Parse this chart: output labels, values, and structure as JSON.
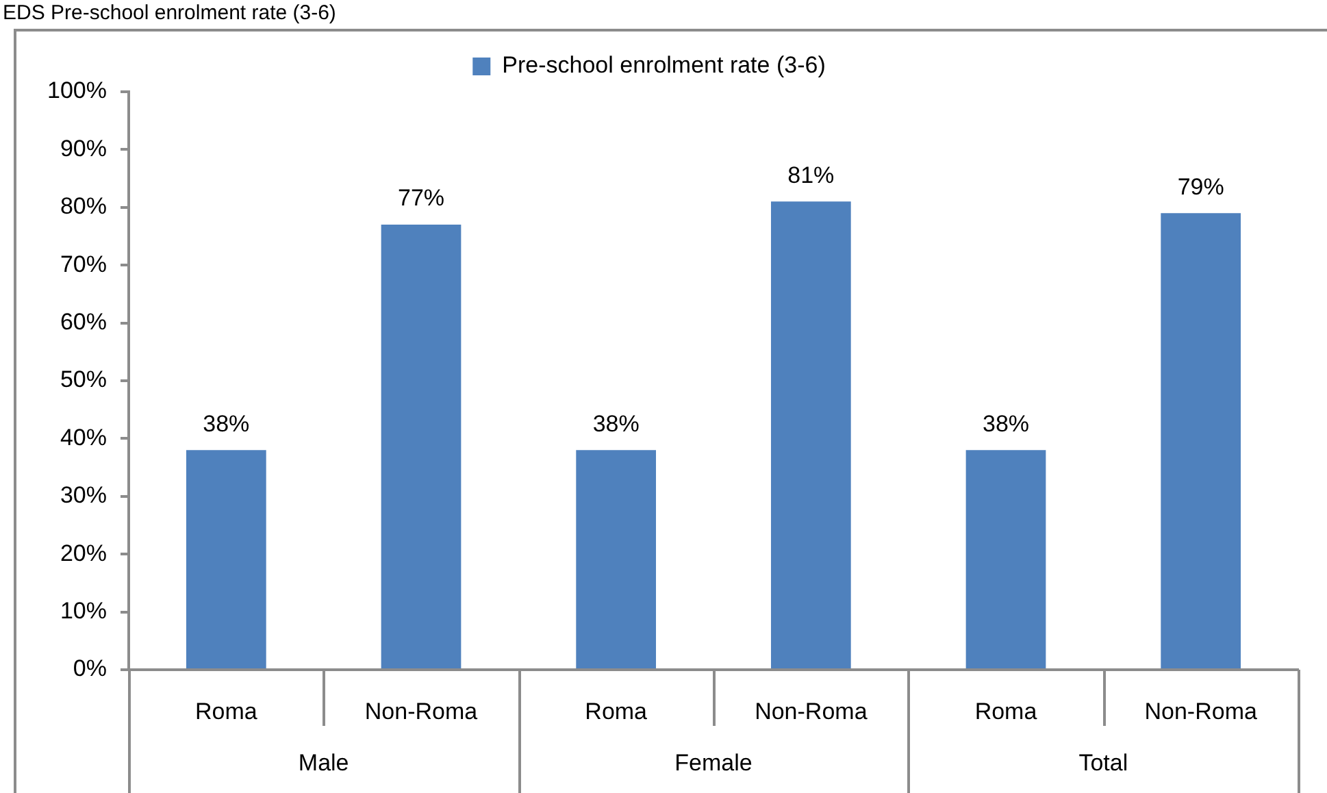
{
  "chart_data": {
    "type": "bar",
    "title": "EDS Pre-school enrolment rate (3-6)",
    "categories": [
      "Roma",
      "Non-Roma",
      "Roma",
      "Non-Roma",
      "Roma",
      "Non-Roma"
    ],
    "series": [
      {
        "name": "Pre-school enrolment rate (3-6)",
        "color": "#4f81bd",
        "values": [
          38,
          77,
          38,
          81,
          38,
          79
        ],
        "value_labels": [
          "38%",
          "77%",
          "38%",
          "81%",
          "38%",
          "79%"
        ]
      }
    ],
    "ylim": [
      0,
      100
    ],
    "yticks": [
      {
        "value": 0,
        "label": "0%"
      },
      {
        "value": 10,
        "label": "10%"
      },
      {
        "value": 20,
        "label": "20%"
      },
      {
        "value": 30,
        "label": "30%"
      },
      {
        "value": 40,
        "label": "40%"
      },
      {
        "value": 50,
        "label": "50%"
      },
      {
        "value": 60,
        "label": "60%"
      },
      {
        "value": 70,
        "label": "70%"
      },
      {
        "value": 80,
        "label": "80%"
      },
      {
        "value": 90,
        "label": "90%"
      },
      {
        "value": 100,
        "label": "100%"
      }
    ],
    "grid": false,
    "legend": "top",
    "annotations": [
      "Male",
      "Female",
      "Total"
    ]
  }
}
